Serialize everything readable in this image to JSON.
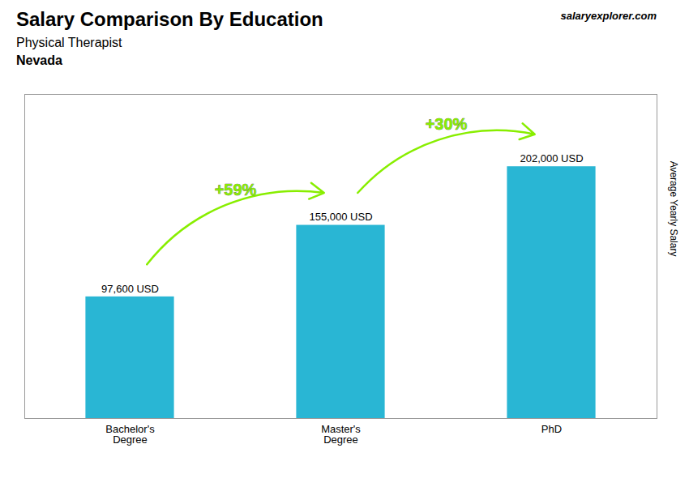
{
  "chart_data": {
    "type": "bar",
    "title": "Salary Comparison By Education",
    "subtitle": "Physical Therapist",
    "location": "Nevada",
    "watermark": "salaryexplorer.com",
    "ylabel": "Average Yearly Salary",
    "categories": [
      "Bachelor's\nDegree",
      "Master's\nDegree",
      "PhD"
    ],
    "values": [
      97600,
      155000,
      202000
    ],
    "value_labels": [
      "97,600 USD",
      "155,000 USD",
      "202,000 USD"
    ],
    "data_labels": true,
    "color": "#29b6d4",
    "ylim": [
      0,
      260000
    ],
    "tick_labels": "x",
    "grid": false,
    "annotations": [
      {
        "text": "+59%",
        "from": "Bachelor's\nDegree",
        "to": "Master's\nDegree",
        "color": "#88ee00"
      },
      {
        "text": "+30%",
        "from": "Master's\nDegree",
        "to": "PhD",
        "color": "#88ee00"
      }
    ]
  }
}
